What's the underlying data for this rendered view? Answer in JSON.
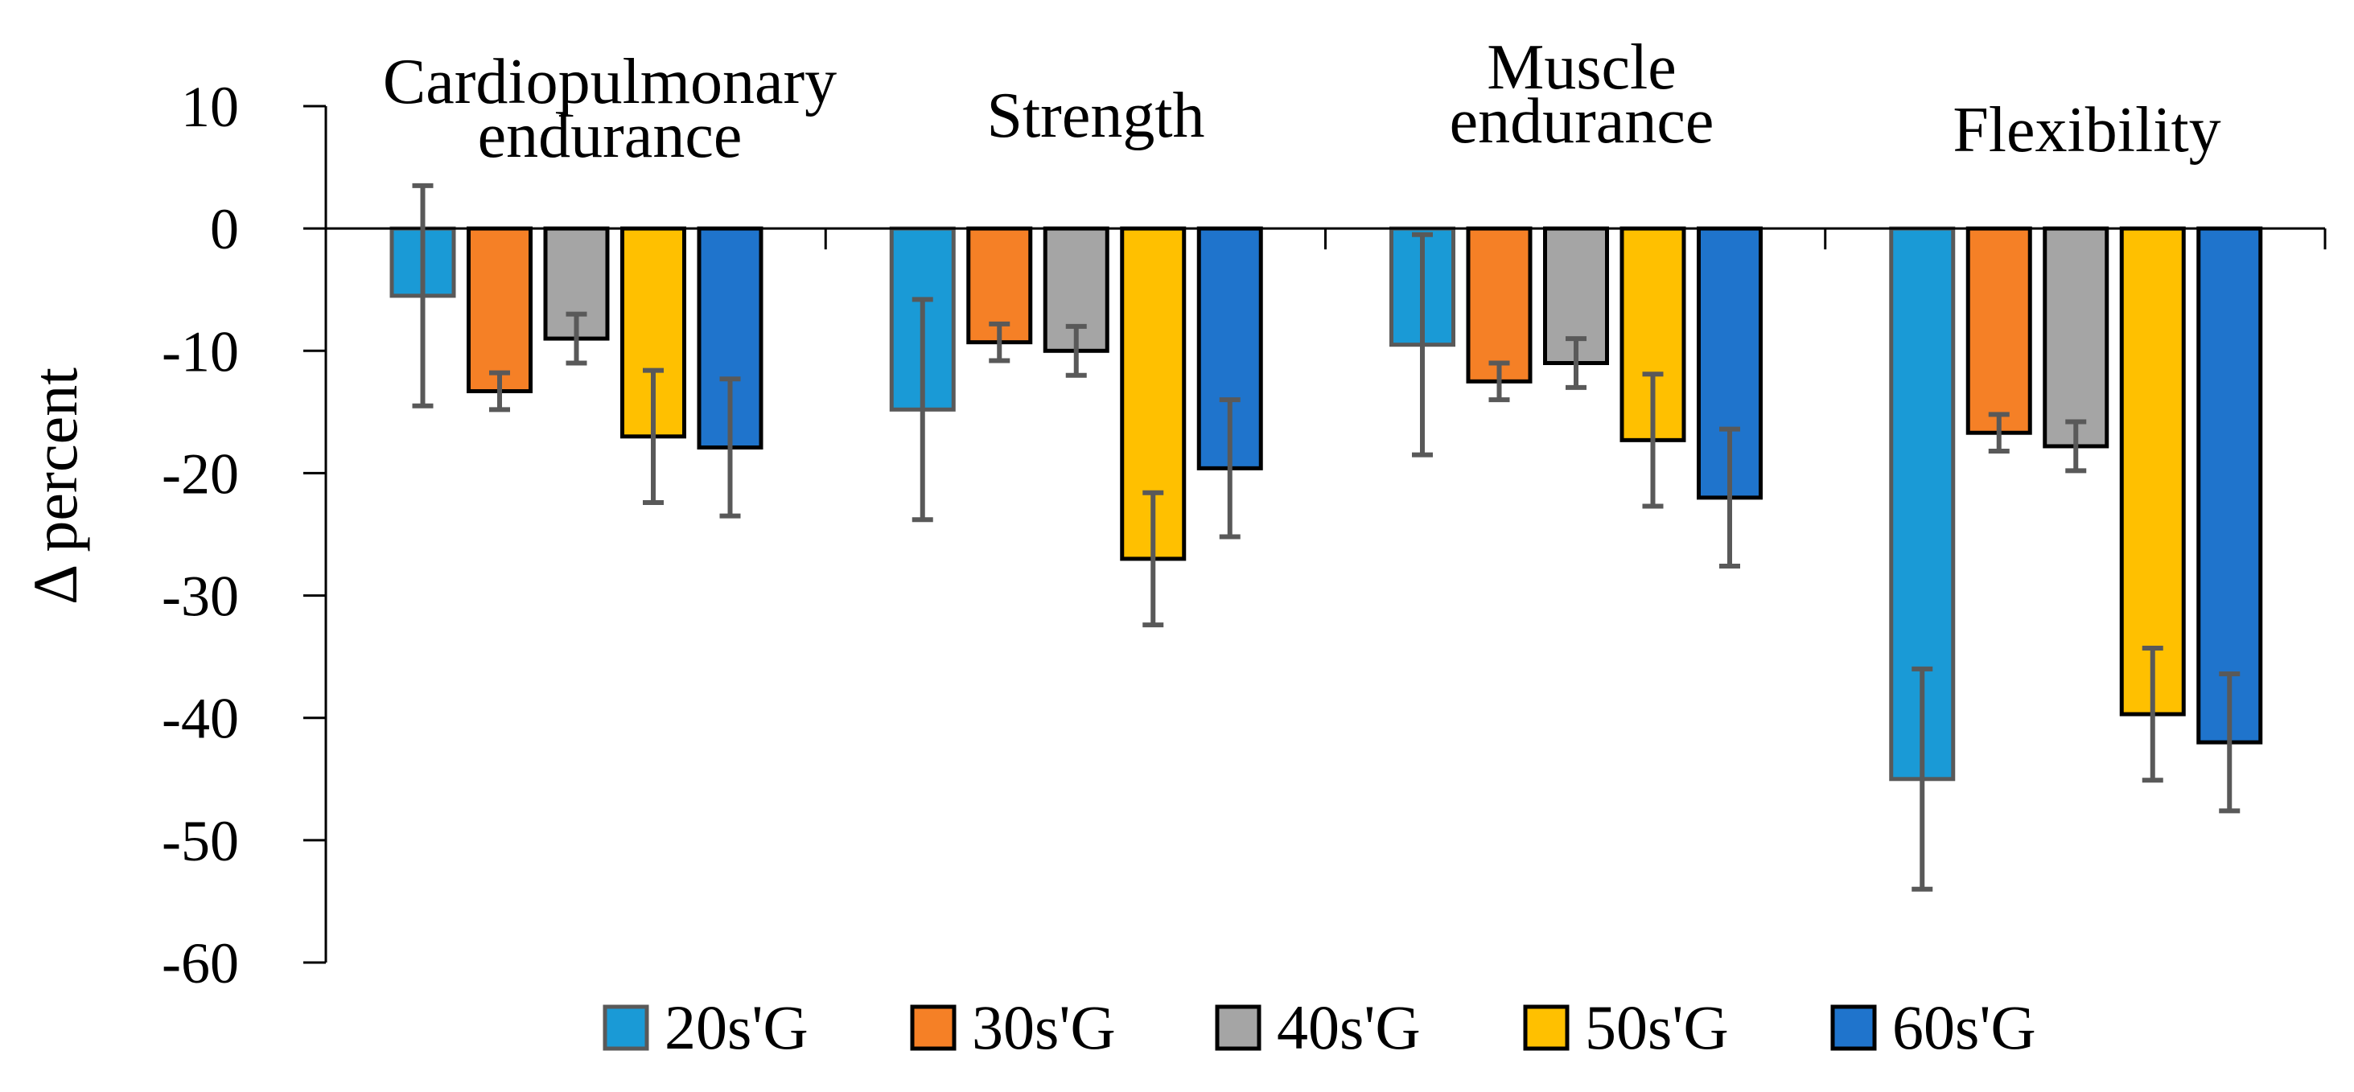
{
  "chart_data": {
    "type": "bar",
    "title": "",
    "xlabel": "",
    "ylabel": "Δ percent",
    "ylim": [
      -60,
      10
    ],
    "yticks": [
      10,
      0,
      -10,
      -20,
      -30,
      -40,
      -50,
      -60
    ],
    "grid": false,
    "legend_position": "bottom",
    "categories": [
      [
        "Cardiopulmonary",
        "endurance"
      ],
      [
        "Strength"
      ],
      [
        "Muscle",
        "endurance"
      ],
      [
        "Flexibility"
      ]
    ],
    "series": [
      {
        "name": "20s'G",
        "color": "#1a9ad6",
        "edge": "#595959",
        "values": [
          -5.5,
          -14.8,
          -9.5,
          -45.0
        ],
        "errors": [
          9.0,
          9.0,
          9.0,
          9.0
        ]
      },
      {
        "name": "30s'G",
        "color": "#f58026",
        "edge": "#000000",
        "values": [
          -13.3,
          -9.3,
          -12.5,
          -16.7
        ],
        "errors": [
          1.5,
          1.5,
          1.5,
          1.5
        ]
      },
      {
        "name": "40s'G",
        "color": "#a5a5a5",
        "edge": "#000000",
        "values": [
          -9.0,
          -10.0,
          -11.0,
          -17.8
        ],
        "errors": [
          2.0,
          2.0,
          2.0,
          2.0
        ]
      },
      {
        "name": "50s'G",
        "color": "#ffc000",
        "edge": "#000000",
        "values": [
          -17.0,
          -27.0,
          -17.3,
          -39.7
        ],
        "errors": [
          5.4,
          5.4,
          5.4,
          5.4
        ]
      },
      {
        "name": "60s'G",
        "color": "#1f74cc",
        "edge": "#000000",
        "values": [
          -17.9,
          -19.6,
          -22.0,
          -42.0
        ],
        "errors": [
          5.6,
          5.6,
          5.6,
          5.6
        ]
      }
    ]
  }
}
